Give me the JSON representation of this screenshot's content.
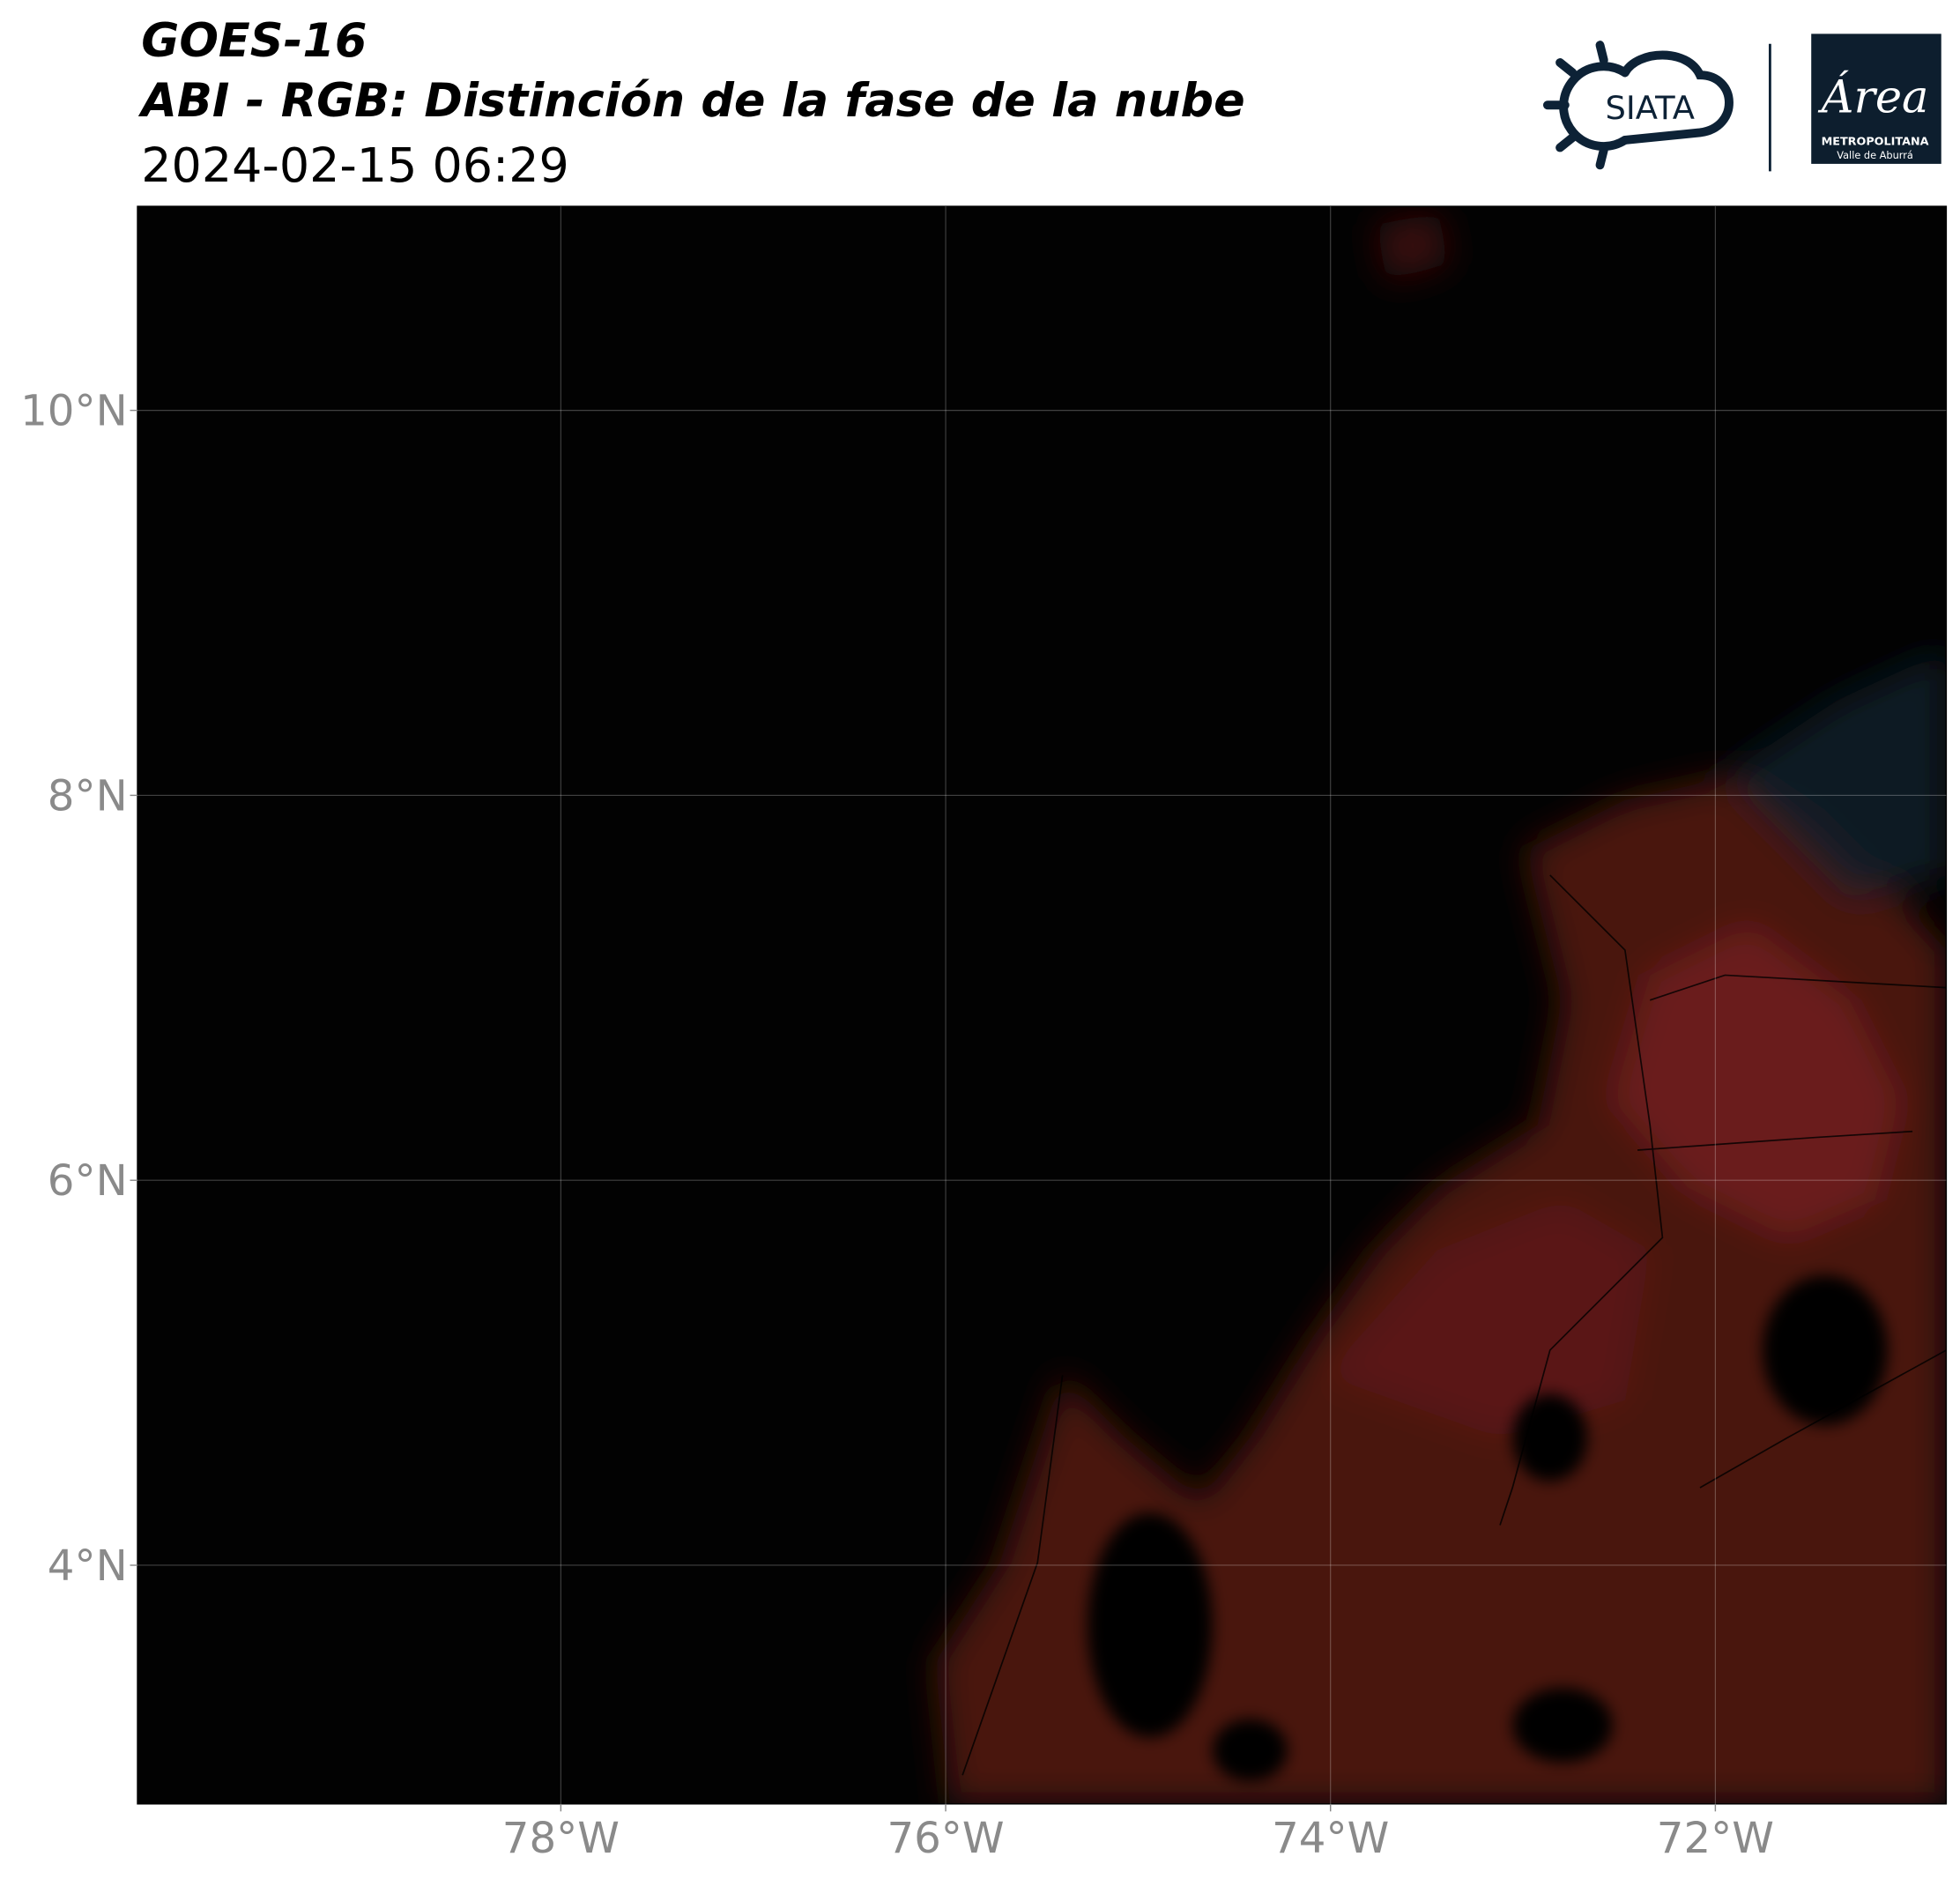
{
  "header": {
    "title": "GOES-16",
    "subtitle": "ABI - RGB: Distinción de la fase de la nube",
    "datetime": "2024-02-15 06:29"
  },
  "logos": {
    "siata": "SIATA",
    "area": "Área",
    "metropolitana": "METROPOLITANA",
    "valle": "Valle de Aburrá"
  },
  "map": {
    "xlim": [
      -80.2,
      -70.8
    ],
    "ylim": [
      2.76,
      11.06
    ],
    "xticks": [
      {
        "value": -78,
        "label": "78°W"
      },
      {
        "value": -76,
        "label": "76°W"
      },
      {
        "value": -74,
        "label": "74°W"
      },
      {
        "value": -72,
        "label": "72°W"
      }
    ],
    "yticks": [
      {
        "value": 4,
        "label": "4°N"
      },
      {
        "value": 6,
        "label": "6°N"
      },
      {
        "value": 8,
        "label": "8°N"
      },
      {
        "value": 10,
        "label": "10°N"
      }
    ],
    "grid": true
  }
}
